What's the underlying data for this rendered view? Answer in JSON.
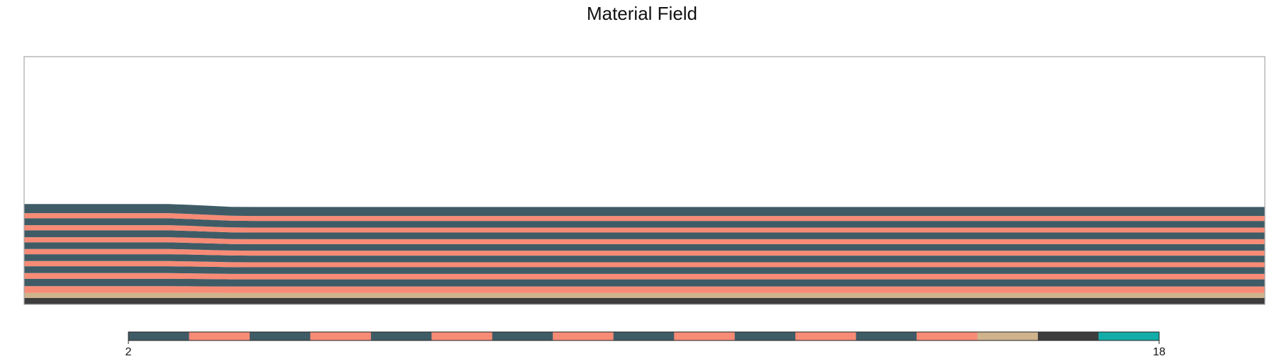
{
  "chart_data": {
    "type": "heatmap",
    "title": "Material Field",
    "xlabel": "",
    "ylabel": "",
    "grid": false,
    "domain": {
      "x": [
        0,
        1
      ],
      "y": [
        0,
        1
      ]
    },
    "layers": [
      {
        "material": 17,
        "bottom": 0.0,
        "top": 0.026,
        "color": "#3d3d3d"
      },
      {
        "material": 16,
        "bottom": 0.026,
        "top": 0.046,
        "color": "#cfb38c"
      },
      {
        "material": 15,
        "bottom": 0.046,
        "top": 0.072,
        "color": "#f78b76"
      },
      {
        "material": 14,
        "bottom": 0.072,
        "top": 0.101,
        "color": "#3f5c66"
      },
      {
        "material": 13,
        "bottom": 0.101,
        "top": 0.123,
        "color": "#f78b76"
      },
      {
        "material": 12,
        "bottom": 0.123,
        "top": 0.15,
        "color": "#3f5c66"
      },
      {
        "material": 11,
        "bottom": 0.15,
        "top": 0.17,
        "color": "#f78b76"
      },
      {
        "material": 10,
        "bottom": 0.17,
        "top": 0.197,
        "color": "#3f5c66"
      },
      {
        "material": 9,
        "bottom": 0.197,
        "top": 0.217,
        "color": "#f78b76"
      },
      {
        "material": 8,
        "bottom": 0.217,
        "top": 0.243,
        "color": "#3f5c66"
      },
      {
        "material": 7,
        "bottom": 0.243,
        "top": 0.263,
        "color": "#f78b76"
      },
      {
        "material": 6,
        "bottom": 0.263,
        "top": 0.29,
        "color": "#3f5c66"
      },
      {
        "material": 5,
        "bottom": 0.29,
        "top": 0.31,
        "color": "#f78b76"
      },
      {
        "material": 4,
        "bottom": 0.31,
        "top": 0.337,
        "color": "#3f5c66"
      },
      {
        "material": 3,
        "bottom": 0.337,
        "top": 0.357,
        "color": "#f78b76"
      },
      {
        "material": 2,
        "bottom": 0.357,
        "top": 0.393,
        "color": "#3f5c66"
      }
    ],
    "left_bump": {
      "x_start": 0.0,
      "x_end": 0.15,
      "extra_max": 0.012
    },
    "colorbar": {
      "min": 2,
      "max": 18,
      "tick_labels": [
        "2",
        "18"
      ],
      "colors": [
        "#3f5c66",
        "#f78b76",
        "#3f5c66",
        "#f78b76",
        "#3f5c66",
        "#f78b76",
        "#3f5c66",
        "#f78b76",
        "#3f5c66",
        "#f78b76",
        "#3f5c66",
        "#f78b76",
        "#3f5c66",
        "#f78b76",
        "#cfb38c",
        "#3d3d3d",
        "#12ada8"
      ]
    }
  }
}
